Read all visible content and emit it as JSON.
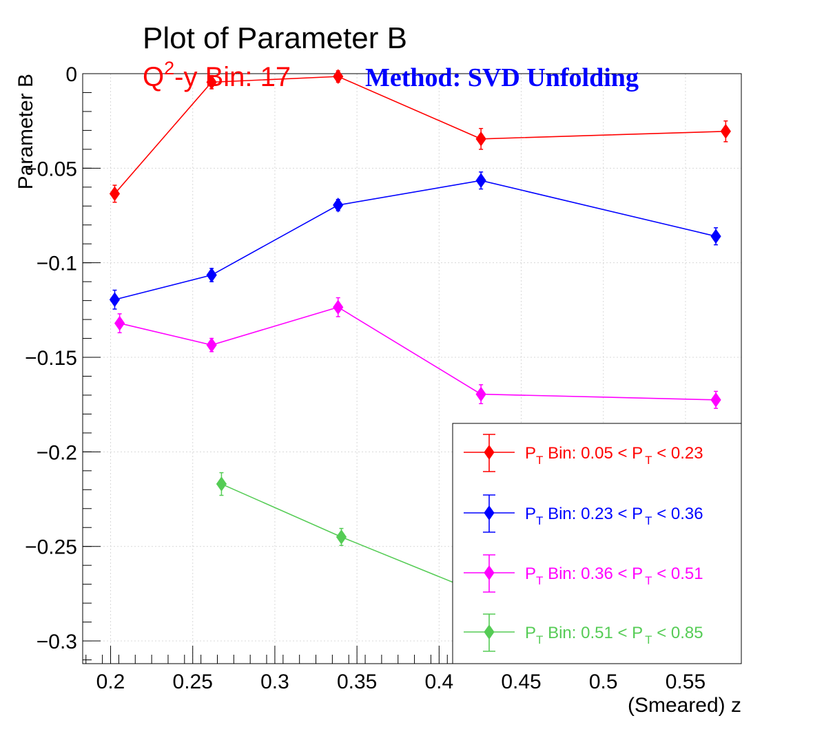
{
  "chart_data": {
    "type": "scatter",
    "title": "Plot of Parameter B",
    "subtitle": {
      "bin_prefix": "Q",
      "bin_sup": "2",
      "bin_rest": "-y Bin: 17",
      "method": "Method: SVD Unfolding"
    },
    "xlabel": "(Smeared) z",
    "ylabel": "Parameter B",
    "xlim": [
      0.183,
      0.584
    ],
    "ylim": [
      -0.312,
      0.0
    ],
    "x_ticks": [
      "0.2",
      "0.25",
      "0.3",
      "0.35",
      "0.4",
      "0.45",
      "0.5",
      "0.55"
    ],
    "x_tick_values": [
      0.2,
      0.25,
      0.3,
      0.35,
      0.4,
      0.45,
      0.5,
      0.55
    ],
    "y_ticks": [
      "0",
      "−0.05",
      "−0.1",
      "−0.15",
      "−0.2",
      "−0.25",
      "−0.3"
    ],
    "y_tick_values": [
      0.0,
      -0.05,
      -0.1,
      -0.15,
      -0.2,
      -0.25,
      -0.3
    ],
    "grid": true,
    "legend_position": "bottom-right",
    "series": [
      {
        "name": "P_T Bin: 0.05 < P_T < 0.23",
        "legend": {
          "p": "P",
          "t": "T",
          "mid": " Bin: 0.05 < P",
          "end": " < 0.23"
        },
        "color": "#ff0000",
        "x": [
          0.2025,
          0.2615,
          0.3385,
          0.4255,
          0.5745
        ],
        "y": [
          -0.0635,
          -0.0045,
          -0.0015,
          -0.0345,
          -0.0305
        ],
        "err": [
          0.0045,
          0.0035,
          0.003,
          0.0055,
          0.0055
        ]
      },
      {
        "name": "P_T Bin: 0.23 < P_T < 0.36",
        "legend": {
          "p": "P",
          "t": "T",
          "mid": " Bin: 0.23 < P",
          "end": " < 0.36"
        },
        "color": "#0000ff",
        "x": [
          0.2025,
          0.2615,
          0.3385,
          0.4255,
          0.5685
        ],
        "y": [
          -0.1195,
          -0.1065,
          -0.0695,
          -0.0565,
          -0.086
        ],
        "err": [
          0.005,
          0.0035,
          0.003,
          0.0045,
          0.0045
        ]
      },
      {
        "name": "P_T Bin: 0.36 < P_T < 0.51",
        "legend": {
          "p": "P",
          "t": "T",
          "mid": " Bin: 0.36 < P",
          "end": " < 0.51"
        },
        "color": "#ff00ff",
        "x": [
          0.2055,
          0.2615,
          0.3385,
          0.4255,
          0.5685
        ],
        "y": [
          -0.132,
          -0.1435,
          -0.1235,
          -0.1695,
          -0.1725
        ],
        "err": [
          0.005,
          0.0035,
          0.005,
          0.005,
          0.0045
        ]
      },
      {
        "name": "P_T Bin: 0.51 < P_T < 0.85",
        "legend": {
          "p": "P",
          "t": "T",
          "mid": " Bin: 0.51 < P",
          "end": " < 0.85"
        },
        "color": "#55cc55",
        "x": [
          0.2675,
          0.3405,
          0.4255
        ],
        "y": [
          -0.217,
          -0.245,
          -0.275
        ],
        "err": [
          0.006,
          0.0045,
          0.005
        ]
      }
    ]
  }
}
